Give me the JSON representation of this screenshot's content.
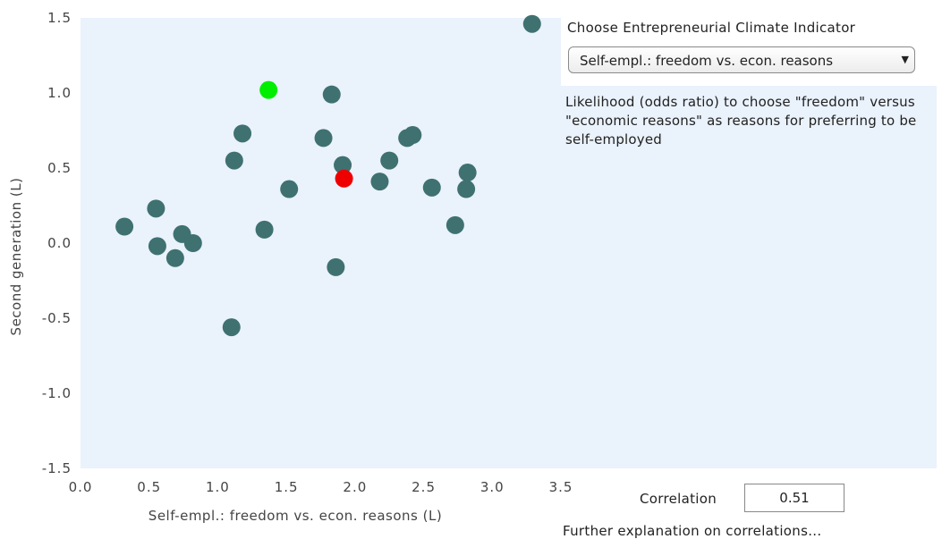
{
  "chart_data": {
    "type": "scatter",
    "xlabel": "Self-empl.: freedom vs. econ. reasons (L)",
    "ylabel": "Second generation (L)",
    "xlim": [
      0,
      3.5
    ],
    "ylim": [
      -1.5,
      1.5
    ],
    "xticks": [
      "0.0",
      "0.5",
      "1.0",
      "1.5",
      "2.0",
      "2.5",
      "3.0",
      "3.5"
    ],
    "yticks": [
      "1.5",
      "1.0",
      "0.5",
      "0.0",
      "-0.5",
      "-1.0",
      "-1.5"
    ],
    "grid": false,
    "colors": {
      "default": "#3f7171",
      "highlight_green": "#00ee00",
      "highlight_red": "#ee0000",
      "plot_background": "#eaf2fc"
    },
    "points": [
      {
        "x": 0.32,
        "y": 0.11,
        "color": "default"
      },
      {
        "x": 0.55,
        "y": 0.23,
        "color": "default"
      },
      {
        "x": 0.56,
        "y": -0.02,
        "color": "default"
      },
      {
        "x": 0.69,
        "y": -0.1,
        "color": "default"
      },
      {
        "x": 0.74,
        "y": 0.06,
        "color": "default"
      },
      {
        "x": 0.82,
        "y": 0.0,
        "color": "default"
      },
      {
        "x": 1.1,
        "y": -0.56,
        "color": "default"
      },
      {
        "x": 1.12,
        "y": 0.55,
        "color": "default"
      },
      {
        "x": 1.18,
        "y": 0.73,
        "color": "default"
      },
      {
        "x": 1.34,
        "y": 0.09,
        "color": "default"
      },
      {
        "x": 1.37,
        "y": 1.02,
        "color": "highlight_green"
      },
      {
        "x": 1.52,
        "y": 0.36,
        "color": "default"
      },
      {
        "x": 1.77,
        "y": 0.7,
        "color": "default"
      },
      {
        "x": 1.83,
        "y": 0.99,
        "color": "default"
      },
      {
        "x": 1.86,
        "y": -0.16,
        "color": "default"
      },
      {
        "x": 1.91,
        "y": 0.52,
        "color": "default"
      },
      {
        "x": 1.92,
        "y": 0.43,
        "color": "highlight_red"
      },
      {
        "x": 2.18,
        "y": 0.41,
        "color": "default"
      },
      {
        "x": 2.25,
        "y": 0.55,
        "color": "default"
      },
      {
        "x": 2.38,
        "y": 0.7,
        "color": "default"
      },
      {
        "x": 2.42,
        "y": 0.72,
        "color": "default"
      },
      {
        "x": 2.56,
        "y": 0.37,
        "color": "default"
      },
      {
        "x": 2.73,
        "y": 0.12,
        "color": "default"
      },
      {
        "x": 2.81,
        "y": 0.36,
        "color": "default"
      },
      {
        "x": 2.82,
        "y": 0.47,
        "color": "default"
      },
      {
        "x": 3.29,
        "y": 1.46,
        "color": "default"
      }
    ]
  },
  "sidebar": {
    "indicator_label": "Choose Entrepreneurial Climate Indicator",
    "selected_indicator": "Self-empl.: freedom vs. econ. reasons",
    "description": "Likelihood (odds ratio) to choose \"freedom\" versus \"economic reasons\" as reasons for preferring to be self-employed",
    "correlation_label": "Correlation",
    "correlation_value": "0.51",
    "further_link": "Further explanation on correlations..."
  }
}
